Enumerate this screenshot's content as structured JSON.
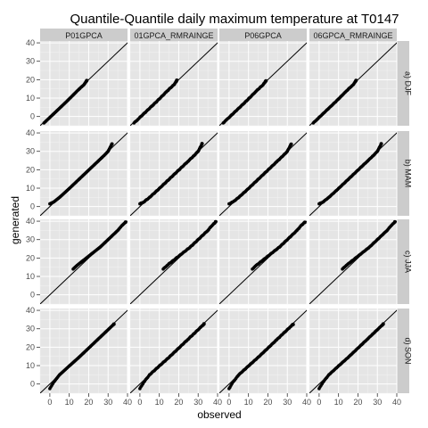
{
  "chart_data": {
    "type": "scatter",
    "title": "Quantile-Quantile daily maximum temperature at T0147",
    "xlabel": "observed",
    "ylabel": "generated",
    "xlim": [
      -5,
      40
    ],
    "ylim": [
      -5,
      41
    ],
    "x_ticks": [
      0,
      10,
      20,
      30,
      40
    ],
    "y_ticks": [
      0,
      10,
      20,
      30,
      40
    ],
    "grid": true,
    "reference_line": "y = x",
    "columns": [
      "P01GPCA",
      "01GPCA_RMRAINGE",
      "P06GPCA",
      "06GPCA_RMRAINGE"
    ],
    "rows": [
      "a) DJF",
      "b) MAM",
      "c) JJA",
      "d) SON"
    ],
    "seasons": {
      "a) DJF": {
        "qq": [
          [
            -3,
            -3.5
          ],
          [
            -1,
            -1.5
          ],
          [
            2,
            1.5
          ],
          [
            5,
            4.5
          ],
          [
            8,
            7.5
          ],
          [
            11,
            10.6
          ],
          [
            14,
            13.8
          ],
          [
            16,
            15.8
          ],
          [
            17.5,
            17.2
          ],
          [
            18.5,
            18.7
          ],
          [
            19,
            19.5
          ]
        ]
      },
      "b) MAM": {
        "qq": [
          [
            0,
            1.5
          ],
          [
            2,
            2.5
          ],
          [
            5,
            5
          ],
          [
            10,
            9.8
          ],
          [
            15,
            14.8
          ],
          [
            20,
            19.8
          ],
          [
            25,
            24.8
          ],
          [
            28,
            27.8
          ],
          [
            30,
            30
          ],
          [
            31,
            32
          ],
          [
            32,
            34
          ]
        ]
      },
      "c) JJA": {
        "qq": [
          [
            12,
            14
          ],
          [
            14,
            16
          ],
          [
            17,
            18.5
          ],
          [
            20,
            21
          ],
          [
            23,
            23.5
          ],
          [
            26,
            26
          ],
          [
            29,
            29
          ],
          [
            32,
            32
          ],
          [
            35,
            35
          ],
          [
            37,
            37.5
          ],
          [
            39,
            39.5
          ]
        ]
      },
      "d) SON": {
        "qq": [
          [
            0,
            -2.5
          ],
          [
            2,
            1
          ],
          [
            5,
            5
          ],
          [
            10,
            9.8
          ],
          [
            15,
            14.5
          ],
          [
            20,
            19.5
          ],
          [
            25,
            24.5
          ],
          [
            28,
            27.5
          ],
          [
            30,
            29.5
          ],
          [
            32,
            31.5
          ],
          [
            33,
            32.5
          ]
        ]
      }
    }
  },
  "colors": {
    "panel_bg": "#e5e5e5",
    "grid": "#ffffff",
    "strip_bg": "#cccccc",
    "points": "#000000",
    "line": "#000000"
  }
}
